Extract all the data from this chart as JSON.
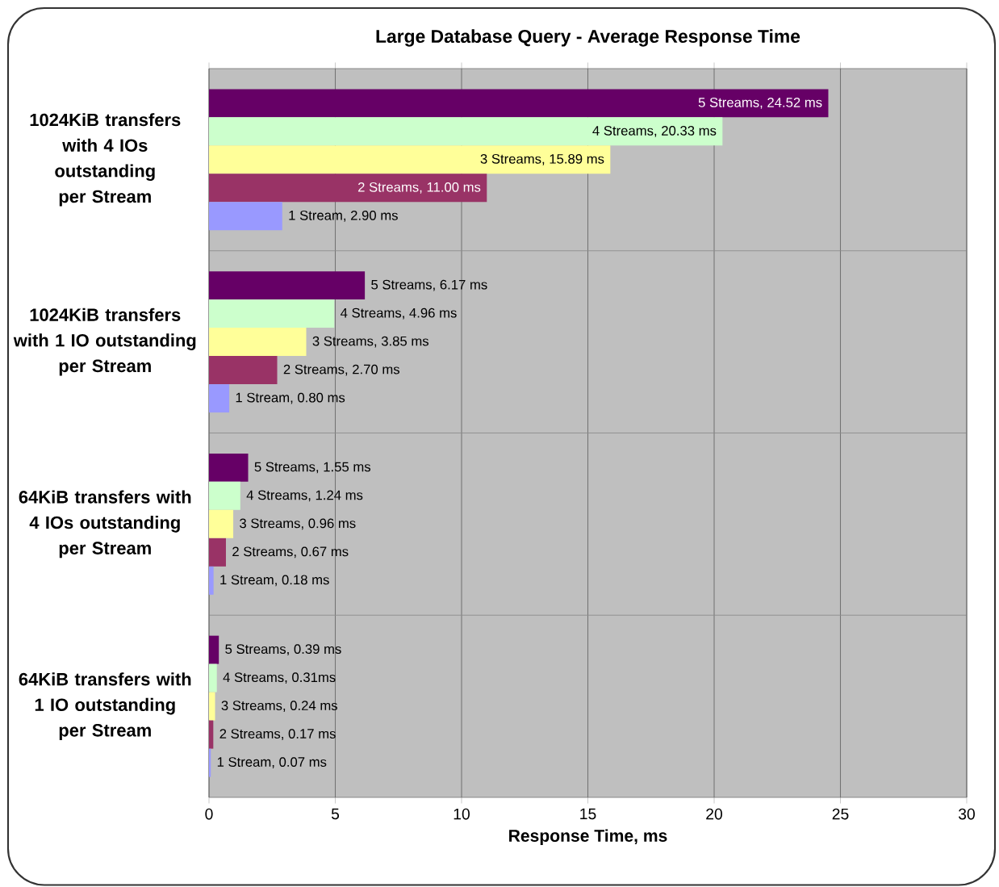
{
  "chart_data": {
    "type": "bar",
    "orientation": "horizontal",
    "title": "Large Database Query - Average Response Time",
    "xlabel": "Response Time, ms",
    "categories": [
      "1024KiB transfers with 4 IOs outstanding per Stream",
      "1024KiB transfers with 1 IO outstanding per Stream",
      "64KiB transfers with 4 IOs outstanding per Stream",
      "64KiB transfers with 1 IO outstanding per Stream"
    ],
    "series": [
      {
        "color": "#660066",
        "values": [
          24.52,
          6.17,
          1.55,
          0.39
        ],
        "value_labels": [
          "5 Streams, 24.52 ms",
          "5 Streams, 6.17 ms",
          "5 Streams, 1.55 ms",
          "5 Streams, 0.39 ms"
        ]
      },
      {
        "color": "#ccffcc",
        "values": [
          20.33,
          4.96,
          1.24,
          0.31
        ],
        "value_labels": [
          "4 Streams, 20.33 ms",
          "4 Streams, 4.96 ms",
          "4 Streams, 1.24 ms",
          "4 Streams, 0.31ms"
        ]
      },
      {
        "color": "#ffff99",
        "values": [
          15.89,
          3.85,
          0.96,
          0.24
        ],
        "value_labels": [
          "3 Streams, 15.89 ms",
          "3 Streams, 3.85 ms",
          "3 Streams, 0.96 ms",
          "3 Streams, 0.24 ms"
        ]
      },
      {
        "color": "#993366",
        "values": [
          11.0,
          2.7,
          0.67,
          0.17
        ],
        "value_labels": [
          "2 Streams, 11.00 ms",
          "2 Streams, 2.70 ms",
          "2 Streams, 0.67 ms",
          "2 Streams, 0.17 ms"
        ]
      },
      {
        "color": "#9999ff",
        "values": [
          2.9,
          0.8,
          0.18,
          0.07
        ],
        "value_labels": [
          "1 Stream, 2.90 ms",
          "1 Stream, 0.80 ms",
          "1 Stream, 0.18 ms",
          "1 Stream, 0.07 ms"
        ]
      }
    ],
    "xlim": [
      0,
      30
    ],
    "xticks": [
      0,
      5,
      10,
      15,
      20,
      25,
      30
    ],
    "grid": true
  }
}
